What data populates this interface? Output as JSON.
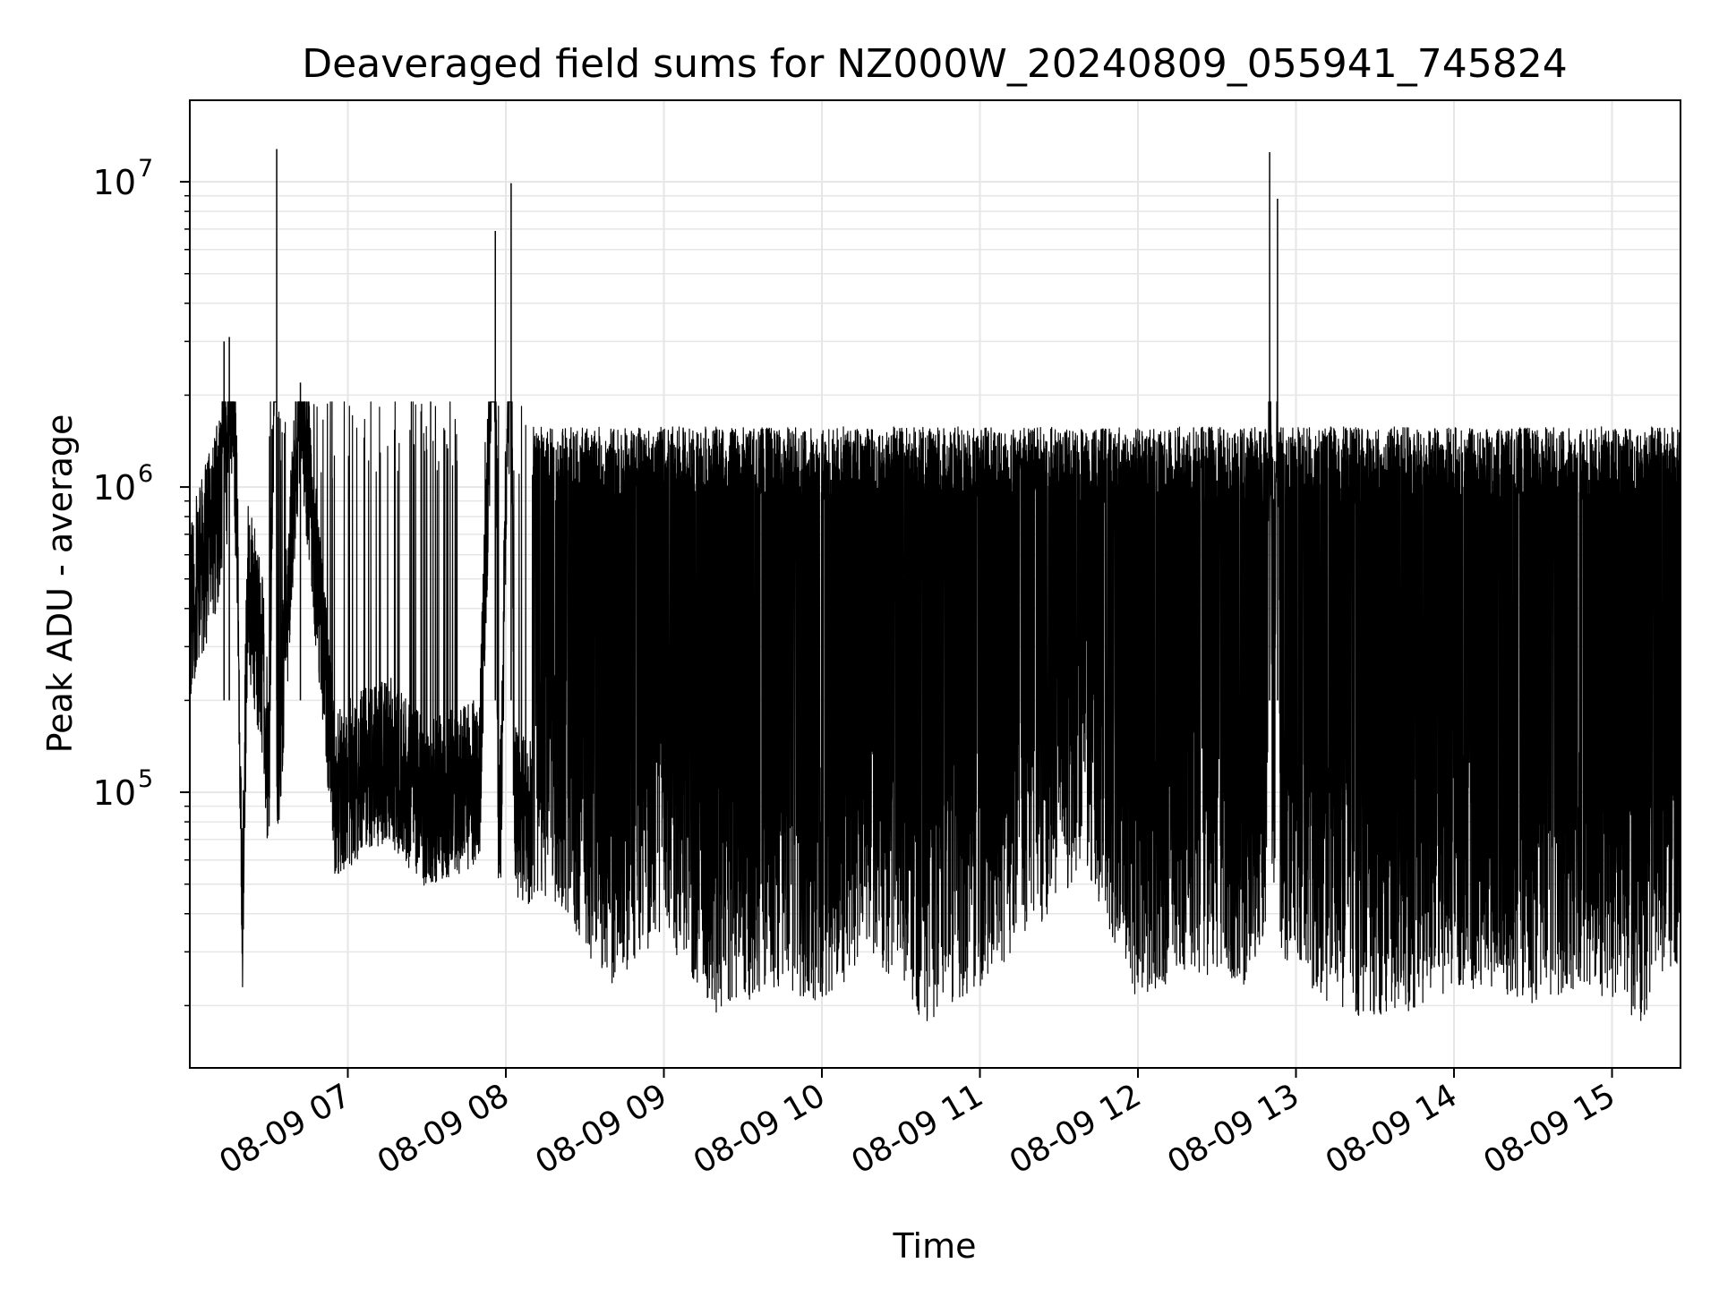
{
  "chart_data": {
    "type": "line",
    "title": "Deaveraged field sums for NZ000W_20240809_055941_745824",
    "xlabel": "Time",
    "ylabel": "Peak ADU - average",
    "yscale": "log",
    "ylim": [
      12500,
      18500000
    ],
    "xlim": [
      "2024-08-09 06:00",
      "2024-08-09 15:26"
    ],
    "grid": true,
    "line_color": "#000000",
    "x_ticks": [
      {
        "time": "2024-08-09 07:00",
        "label": "08-09 07"
      },
      {
        "time": "2024-08-09 08:00",
        "label": "08-09 08"
      },
      {
        "time": "2024-08-09 09:00",
        "label": "08-09 09"
      },
      {
        "time": "2024-08-09 10:00",
        "label": "08-09 10"
      },
      {
        "time": "2024-08-09 11:00",
        "label": "08-09 11"
      },
      {
        "time": "2024-08-09 12:00",
        "label": "08-09 12"
      },
      {
        "time": "2024-08-09 13:00",
        "label": "08-09 13"
      },
      {
        "time": "2024-08-09 14:00",
        "label": "08-09 14"
      },
      {
        "time": "2024-08-09 15:00",
        "label": "08-09 15"
      }
    ],
    "y_ticks": [
      {
        "value": 100000,
        "base": "10",
        "exp": "5"
      },
      {
        "value": 1000000,
        "base": "10",
        "exp": "6"
      },
      {
        "value": 10000000,
        "base": "10",
        "exp": "7"
      }
    ],
    "series": [
      {
        "x": [
          "2024-08-09 06:00",
          "2024-08-09 06:06",
          "2024-08-09 06:12",
          "2024-08-09 06:13",
          "2024-08-09 06:14",
          "2024-08-09 06:15",
          "2024-08-09 06:18",
          "2024-08-09 06:20",
          "2024-08-09 06:22",
          "2024-08-09 06:28",
          "2024-08-09 06:30",
          "2024-08-09 06:33",
          "2024-08-09 06:33",
          "2024-08-09 06:34",
          "2024-08-09 06:42",
          "2024-08-09 06:55",
          "2024-08-09 07:15",
          "2024-08-09 07:30",
          "2024-08-09 07:50",
          "2024-08-09 07:56",
          "2024-08-09 07:57",
          "2024-08-09 07:58",
          "2024-08-09 08:02",
          "2024-08-09 08:03",
          "2024-08-09 08:04",
          "2024-08-09 08:20",
          "2024-08-09 08:40",
          "2024-08-09 09:00",
          "2024-08-09 09:20",
          "2024-08-09 09:40",
          "2024-08-09 10:00",
          "2024-08-09 10:20",
          "2024-08-09 10:40",
          "2024-08-09 11:00",
          "2024-08-09 11:20",
          "2024-08-09 11:40",
          "2024-08-09 12:00",
          "2024-08-09 12:20",
          "2024-08-09 12:40",
          "2024-08-09 12:49",
          "2024-08-09 12:50",
          "2024-08-09 12:51",
          "2024-08-09 12:52",
          "2024-08-09 12:53",
          "2024-08-09 12:54",
          "2024-08-09 13:10",
          "2024-08-09 13:30",
          "2024-08-09 13:50",
          "2024-08-09 14:10",
          "2024-08-09 14:30",
          "2024-08-09 14:50",
          "2024-08-09 15:10",
          "2024-08-09 15:26"
        ],
        "y": [
          400000,
          600000,
          900000,
          3000000,
          1200000,
          3100000,
          800000,
          40000,
          500000,
          250000,
          100000,
          12800000,
          120000,
          150000,
          2200000,
          100000,
          130000,
          90000,
          110000,
          6900000,
          95000,
          80000,
          9900000,
          90000,
          85000,
          70000,
          40000,
          60000,
          30000,
          40000,
          35000,
          50000,
          30000,
          40000,
          60000,
          100000,
          35000,
          45000,
          40000,
          60000,
          12500000,
          80000,
          90000,
          8800000,
          50000,
          35000,
          30000,
          35000,
          40000,
          35000,
          40000,
          30000,
          50000
        ]
      }
    ]
  }
}
